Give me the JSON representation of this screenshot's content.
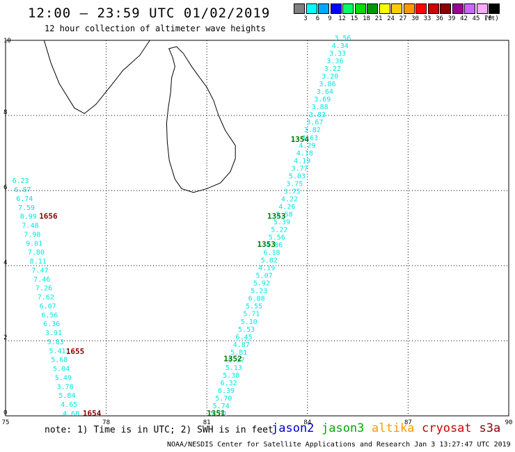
{
  "title": "12:00 – 23:59 UTC 01/02/2019",
  "subtitle": "12 hour collection of altimeter wave heights",
  "legend": {
    "unit": "(ft)",
    "bins": [
      {
        "label": "3",
        "color": "#808080"
      },
      {
        "label": "6",
        "color": "#00ffff"
      },
      {
        "label": "9",
        "color": "#00aaff"
      },
      {
        "label": "12",
        "color": "#0000ff"
      },
      {
        "label": "15",
        "color": "#00ff66"
      },
      {
        "label": "18",
        "color": "#00dd00"
      },
      {
        "label": "21",
        "color": "#009900"
      },
      {
        "label": "24",
        "color": "#ffff00"
      },
      {
        "label": "27",
        "color": "#ffcc00"
      },
      {
        "label": "30",
        "color": "#ff9900"
      },
      {
        "label": "33",
        "color": "#ff0000"
      },
      {
        "label": "36",
        "color": "#cc0000"
      },
      {
        "label": "39",
        "color": "#880000"
      },
      {
        "label": "42",
        "color": "#990099"
      },
      {
        "label": "45",
        "color": "#cc66ff"
      },
      {
        "label": "70",
        "color": "#ffaaff"
      },
      {
        "label": "",
        "color": "#000000"
      }
    ]
  },
  "map": {
    "lon_ticks": [
      "75",
      "78",
      "81",
      "84",
      "87",
      "90"
    ],
    "lat_ticks": [
      "0",
      "2",
      "4",
      "6",
      "8",
      "10"
    ],
    "lon_range": [
      75,
      90
    ],
    "lat_range": [
      0,
      10
    ]
  },
  "tracks": [
    {
      "satellite": "jason3",
      "start": [
        81.1,
        0.0
      ],
      "end": [
        84.8,
        10.0
      ],
      "color": "#00e5e5",
      "values": [
        "5.01",
        "5.74",
        "5.70",
        "6.39",
        "6.32",
        "5.38",
        "5.13",
        "5.37",
        "5.81",
        "4.87",
        "6.45",
        "5.53",
        "5.10",
        "5.71",
        "5.55",
        "6.08",
        "5.23",
        "5.92",
        "5.07",
        "4.19",
        "5.82",
        "6.18",
        "4.86",
        "5.56",
        "5.22",
        "5.39",
        "5.58",
        "4.26",
        "4.22",
        "3.75",
        "3.75",
        "5.03",
        "3.77",
        "4.19",
        "4.18",
        "4.29",
        "3.63",
        "3.82",
        "3.67",
        "3.83",
        "3.88",
        "3.69",
        "3.64",
        "3.86",
        "3.20",
        "3.22",
        "3.36",
        "3.33",
        "4.34",
        "3.56"
      ]
    },
    {
      "satellite": "cryosat",
      "start": [
        75.2,
        6.2
      ],
      "end": [
        76.7,
        0.0
      ],
      "color": "#00e5e5",
      "values": [
        "6.23",
        "6.87",
        "6.74",
        "7.59",
        "8.99",
        "7.48",
        "7.98",
        "9.01",
        "7.80",
        "8.11",
        "7.47",
        "7.46",
        "7.26",
        "7.62",
        "6.07",
        "6.56",
        "6.36",
        "3.91",
        "5.83",
        "5.41",
        "5.68",
        "5.04",
        "5.49",
        "3.78",
        "5.84",
        "4.65",
        "4.68"
      ]
    }
  ],
  "time_labels": [
    {
      "text": "1351",
      "lon": 81.0,
      "lat": 0.0,
      "color": "#007700"
    },
    {
      "text": "1352",
      "lon": 81.5,
      "lat": 1.45,
      "color": "#007700"
    },
    {
      "text": "1353",
      "lon": 82.5,
      "lat": 4.5,
      "color": "#007700"
    },
    {
      "text": "1353",
      "lon": 82.8,
      "lat": 5.25,
      "color": "#007700"
    },
    {
      "text": "1354",
      "lon": 83.5,
      "lat": 7.3,
      "color": "#007700"
    },
    {
      "text": "1654",
      "lon": 77.3,
      "lat": 0.0,
      "color": "#880000"
    },
    {
      "text": "1655",
      "lon": 76.8,
      "lat": 1.65,
      "color": "#880000"
    },
    {
      "text": "1656",
      "lon": 76.0,
      "lat": 5.25,
      "color": "#880000"
    }
  ],
  "note": "note: 1) Time is in UTC; 2) SWH is in feet",
  "satellites": [
    {
      "name": "jason2",
      "color": "#0000cc"
    },
    {
      "name": "jason3",
      "color": "#00aa00"
    },
    {
      "name": "altika",
      "color": "#ff9900"
    },
    {
      "name": "cryosat",
      "color": "#cc0000"
    },
    {
      "name": "s3a",
      "color": "#880000"
    }
  ],
  "footer": "NOAA/NESDIS Center for Satellite Applications and Research   Jan  3 13:27:47 UTC 2019"
}
